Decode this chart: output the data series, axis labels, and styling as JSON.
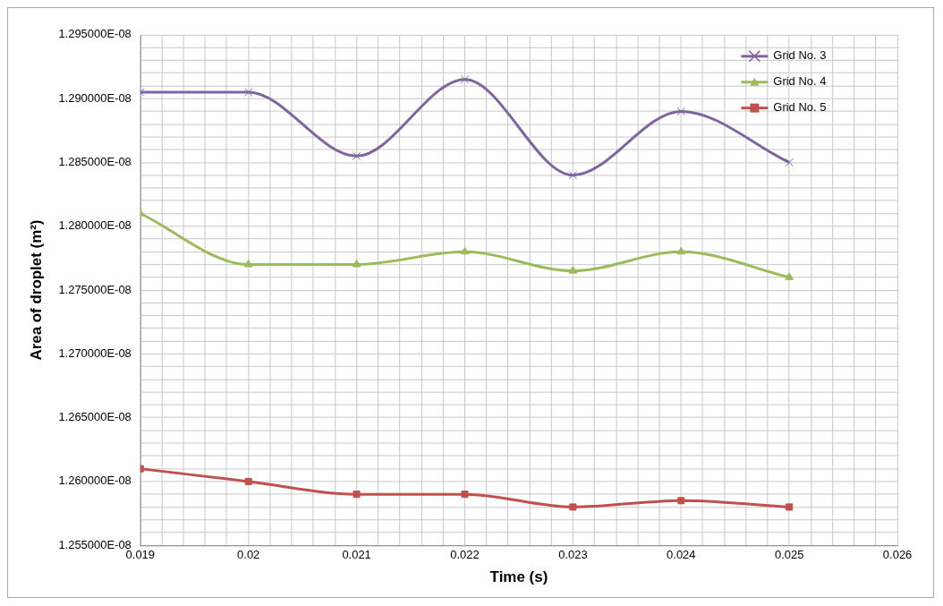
{
  "chart_data": {
    "type": "line",
    "xlabel": "Time (s)",
    "ylabel": "Area of droplet (m²)",
    "x": [
      0.019,
      0.02,
      0.021,
      0.022,
      0.023,
      0.024,
      0.025
    ],
    "series": [
      {
        "name": "Grid No. 3",
        "color": "#8064a2",
        "marker": "cross",
        "values": [
          1.2905e-08,
          1.2905e-08,
          1.2855e-08,
          1.2915e-08,
          1.284e-08,
          1.289e-08,
          1.285e-08
        ]
      },
      {
        "name": "Grid No. 4",
        "color": "#9bbb59",
        "marker": "triangle",
        "values": [
          1.281e-08,
          1.277e-08,
          1.277e-08,
          1.278e-08,
          1.2765e-08,
          1.278e-08,
          1.276e-08
        ]
      },
      {
        "name": "Grid No. 5",
        "color": "#c0504d",
        "marker": "square",
        "values": [
          1.261e-08,
          1.26e-08,
          1.259e-08,
          1.259e-08,
          1.258e-08,
          1.2585e-08,
          1.258e-08
        ]
      }
    ],
    "xlim": [
      0.019,
      0.026
    ],
    "xticks": [
      0.019,
      {
        "value": 0.0192,
        "label": null
      },
      {
        "value": 0.0194,
        "label": null
      },
      {
        "value": 0.0196,
        "label": null
      },
      {
        "value": 0.0198,
        "label": null
      },
      0.02,
      {
        "value": 0.0202,
        "label": null
      },
      {
        "value": 0.0204,
        "label": null
      },
      {
        "value": 0.0206,
        "label": null
      },
      {
        "value": 0.0208,
        "label": null
      },
      0.021,
      {
        "value": 0.0212,
        "label": null
      },
      {
        "value": 0.0214,
        "label": null
      },
      {
        "value": 0.0216,
        "label": null
      },
      {
        "value": 0.0218,
        "label": null
      },
      0.022,
      {
        "value": 0.0222,
        "label": null
      },
      {
        "value": 0.0224,
        "label": null
      },
      {
        "value": 0.0226,
        "label": null
      },
      {
        "value": 0.0228,
        "label": null
      },
      0.023,
      {
        "value": 0.0232,
        "label": null
      },
      {
        "value": 0.0234,
        "label": null
      },
      {
        "value": 0.0236,
        "label": null
      },
      {
        "value": 0.0238,
        "label": null
      },
      0.024,
      {
        "value": 0.0242,
        "label": null
      },
      {
        "value": 0.0244,
        "label": null
      },
      {
        "value": 0.0246,
        "label": null
      },
      {
        "value": 0.0248,
        "label": null
      },
      0.025,
      {
        "value": 0.0252,
        "label": null
      },
      {
        "value": 0.0254,
        "label": null
      },
      {
        "value": 0.0256,
        "label": null
      },
      {
        "value": 0.0258,
        "label": null
      },
      0.026
    ],
    "ylim": [
      1.255e-08,
      1.295e-08
    ],
    "yticks": [
      {
        "value": 1.255e-08,
        "label": "1.255000E-08"
      },
      {
        "value": 1.256e-08,
        "label": null
      },
      {
        "value": 1.257e-08,
        "label": null
      },
      {
        "value": 1.258e-08,
        "label": null
      },
      {
        "value": 1.259e-08,
        "label": null
      },
      {
        "value": 1.26e-08,
        "label": "1.260000E-08"
      },
      {
        "value": 1.261e-08,
        "label": null
      },
      {
        "value": 1.262e-08,
        "label": null
      },
      {
        "value": 1.263e-08,
        "label": null
      },
      {
        "value": 1.264e-08,
        "label": null
      },
      {
        "value": 1.265e-08,
        "label": "1.265000E-08"
      },
      {
        "value": 1.266e-08,
        "label": null
      },
      {
        "value": 1.267e-08,
        "label": null
      },
      {
        "value": 1.268e-08,
        "label": null
      },
      {
        "value": 1.269e-08,
        "label": null
      },
      {
        "value": 1.27e-08,
        "label": "1.270000E-08"
      },
      {
        "value": 1.271e-08,
        "label": null
      },
      {
        "value": 1.272e-08,
        "label": null
      },
      {
        "value": 1.273e-08,
        "label": null
      },
      {
        "value": 1.274e-08,
        "label": null
      },
      {
        "value": 1.275e-08,
        "label": "1.275000E-08"
      },
      {
        "value": 1.276e-08,
        "label": null
      },
      {
        "value": 1.277e-08,
        "label": null
      },
      {
        "value": 1.278e-08,
        "label": null
      },
      {
        "value": 1.279e-08,
        "label": null
      },
      {
        "value": 1.28e-08,
        "label": "1.280000E-08"
      },
      {
        "value": 1.281e-08,
        "label": null
      },
      {
        "value": 1.282e-08,
        "label": null
      },
      {
        "value": 1.283e-08,
        "label": null
      },
      {
        "value": 1.284e-08,
        "label": null
      },
      {
        "value": 1.285e-08,
        "label": "1.285000E-08"
      },
      {
        "value": 1.286e-08,
        "label": null
      },
      {
        "value": 1.287e-08,
        "label": null
      },
      {
        "value": 1.288e-08,
        "label": null
      },
      {
        "value": 1.289e-08,
        "label": null
      },
      {
        "value": 1.29e-08,
        "label": "1.290000E-08"
      },
      {
        "value": 1.291e-08,
        "label": null
      },
      {
        "value": 1.292e-08,
        "label": null
      },
      {
        "value": 1.293e-08,
        "label": null
      },
      {
        "value": 1.294e-08,
        "label": null
      },
      {
        "value": 1.295e-08,
        "label": "1.295000E-08"
      }
    ],
    "grid": true,
    "legend": "top right",
    "line_style": "solid"
  }
}
